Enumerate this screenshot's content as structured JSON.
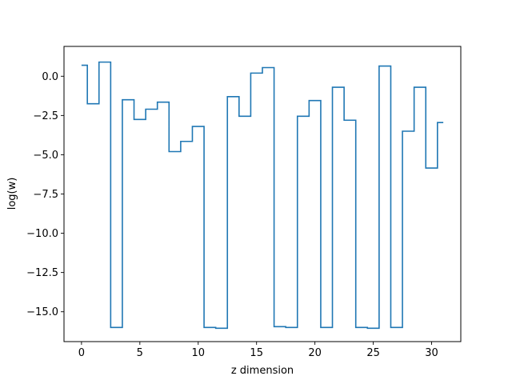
{
  "chart_data": {
    "type": "line",
    "style": "step",
    "xlabel": "z dimension",
    "ylabel": "log(w)",
    "xlim": [
      -1.5,
      32.5
    ],
    "ylim": [
      -16.9,
      1.9
    ],
    "xticks": [
      0,
      5,
      10,
      15,
      20,
      25,
      30
    ],
    "yticks": [
      0.0,
      -2.5,
      -5.0,
      -7.5,
      -10.0,
      -12.5,
      -15.0
    ],
    "ytick_labels": [
      "0.0",
      "−2.5",
      "−5.0",
      "−7.5",
      "−10.0",
      "−12.5",
      "−15.0"
    ],
    "xtick_labels": [
      "0",
      "5",
      "10",
      "15",
      "20",
      "25",
      "30"
    ],
    "grid": false,
    "line_color": "#1f77b4",
    "series": [
      {
        "x": [
          0,
          1,
          2,
          3,
          4,
          5,
          6,
          7,
          8,
          9,
          10,
          11,
          12,
          13,
          14,
          15,
          16,
          17,
          18,
          19,
          20,
          21,
          22,
          23,
          24,
          25,
          26,
          27,
          28,
          29,
          30,
          31
        ],
        "values": [
          0.7,
          -1.75,
          0.9,
          -16.0,
          -1.5,
          -2.75,
          -2.1,
          -1.65,
          -4.8,
          -4.15,
          -3.2,
          -16.0,
          -16.05,
          -1.3,
          -2.55,
          0.2,
          0.55,
          -15.95,
          -16.0,
          -2.55,
          -1.55,
          -16.0,
          -0.7,
          -2.8,
          -16.0,
          -16.05,
          0.65,
          -16.0,
          -3.5,
          -0.7,
          -5.85,
          -2.95
        ]
      }
    ]
  }
}
